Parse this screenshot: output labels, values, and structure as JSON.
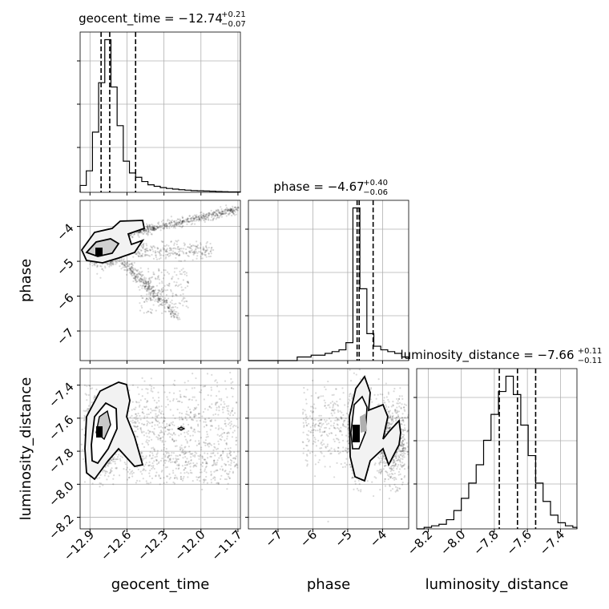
{
  "chart_data": {
    "type": "corner",
    "parameters": [
      "geocent_time",
      "phase",
      "luminosity_distance"
    ],
    "ranges": {
      "geocent_time": [
        -12.98,
        -11.68
      ],
      "phase": [
        -7.85,
        -3.25
      ],
      "luminosity_distance": [
        -8.27,
        -7.3
      ]
    },
    "ticks": {
      "geocent_time": [
        "−12.9",
        "−12.6",
        "−12.3",
        "−12.0",
        "−11.7"
      ],
      "geocent_time_values": [
        -12.9,
        -12.6,
        -12.3,
        -12.0,
        -11.7
      ],
      "phase": [
        "−7",
        "−6",
        "−5",
        "−4"
      ],
      "phase_values": [
        -7,
        -6,
        -5,
        -4
      ],
      "luminosity_distance": [
        "−8.2",
        "−8.0",
        "−7.8",
        "−7.6",
        "−7.4"
      ],
      "luminosity_distance_values": [
        -8.2,
        -8.0,
        -7.8,
        -7.6,
        -7.4
      ]
    },
    "titles": {
      "geocent_time": {
        "text": "geocent_time = −12.74",
        "sup": "+0.21",
        "sub": "−0.07"
      },
      "phase": {
        "text": "phase = −4.67",
        "sup": "+0.40",
        "sub": "−0.06"
      },
      "luminosity_distance": {
        "text": "luminosity_distance = −7.66",
        "sup": "+0.11",
        "sub": "−0.11"
      }
    },
    "quantiles": {
      "geocent_time": [
        -12.81,
        -12.74,
        -12.53
      ],
      "phase": [
        -4.73,
        -4.67,
        -4.27
      ],
      "luminosity_distance": [
        -7.77,
        -7.66,
        -7.55
      ]
    },
    "histograms": {
      "geocent_time": {
        "edges": [
          -12.98,
          -12.93,
          -12.88,
          -12.83,
          -12.78,
          -12.73,
          -12.68,
          -12.63,
          -12.58,
          -12.53,
          -12.48,
          -12.43,
          -12.38,
          -12.33,
          -12.28,
          -12.23,
          -12.18,
          -12.13,
          -12.08,
          -12.03,
          -11.98,
          -11.93,
          -11.88,
          -11.83,
          -11.78,
          -11.73,
          -11.68
        ],
        "counts": [
          0.32,
          1.0,
          2.8,
          5.1,
          7.1,
          4.9,
          3.1,
          1.45,
          0.9,
          0.7,
          0.5,
          0.35,
          0.28,
          0.22,
          0.18,
          0.15,
          0.12,
          0.1,
          0.08,
          0.07,
          0.06,
          0.05,
          0.04,
          0.03,
          0.02,
          0.02
        ]
      },
      "phase": {
        "edges": [
          -7.85,
          -7.65,
          -7.45,
          -7.25,
          -7.05,
          -6.85,
          -6.65,
          -6.45,
          -6.25,
          -6.05,
          -5.85,
          -5.65,
          -5.45,
          -5.25,
          -5.05,
          -4.85,
          -4.65,
          -4.45,
          -4.25,
          -4.05,
          -3.85,
          -3.65,
          -3.45,
          -3.25
        ],
        "counts": [
          0.0,
          0.0,
          0.0,
          0.0,
          0.0,
          0.0,
          0.0,
          0.02,
          0.02,
          0.03,
          0.03,
          0.04,
          0.05,
          0.06,
          0.1,
          0.85,
          0.4,
          0.15,
          0.08,
          0.06,
          0.05,
          0.04,
          0.02
        ]
      },
      "luminosity_distance": {
        "edges": [
          -8.27,
          -8.225,
          -8.18,
          -8.135,
          -8.09,
          -8.045,
          -8.0,
          -7.955,
          -7.91,
          -7.865,
          -7.82,
          -7.775,
          -7.73,
          -7.685,
          -7.64,
          -7.595,
          -7.55,
          -7.505,
          -7.46,
          -7.415,
          -7.37,
          -7.325,
          -7.3
        ],
        "counts": [
          0.0,
          0.01,
          0.02,
          0.03,
          0.06,
          0.12,
          0.2,
          0.3,
          0.42,
          0.58,
          0.75,
          0.9,
          1.0,
          0.88,
          0.68,
          0.48,
          0.3,
          0.18,
          0.09,
          0.04,
          0.02,
          0.01
        ]
      }
    },
    "grid": true
  }
}
